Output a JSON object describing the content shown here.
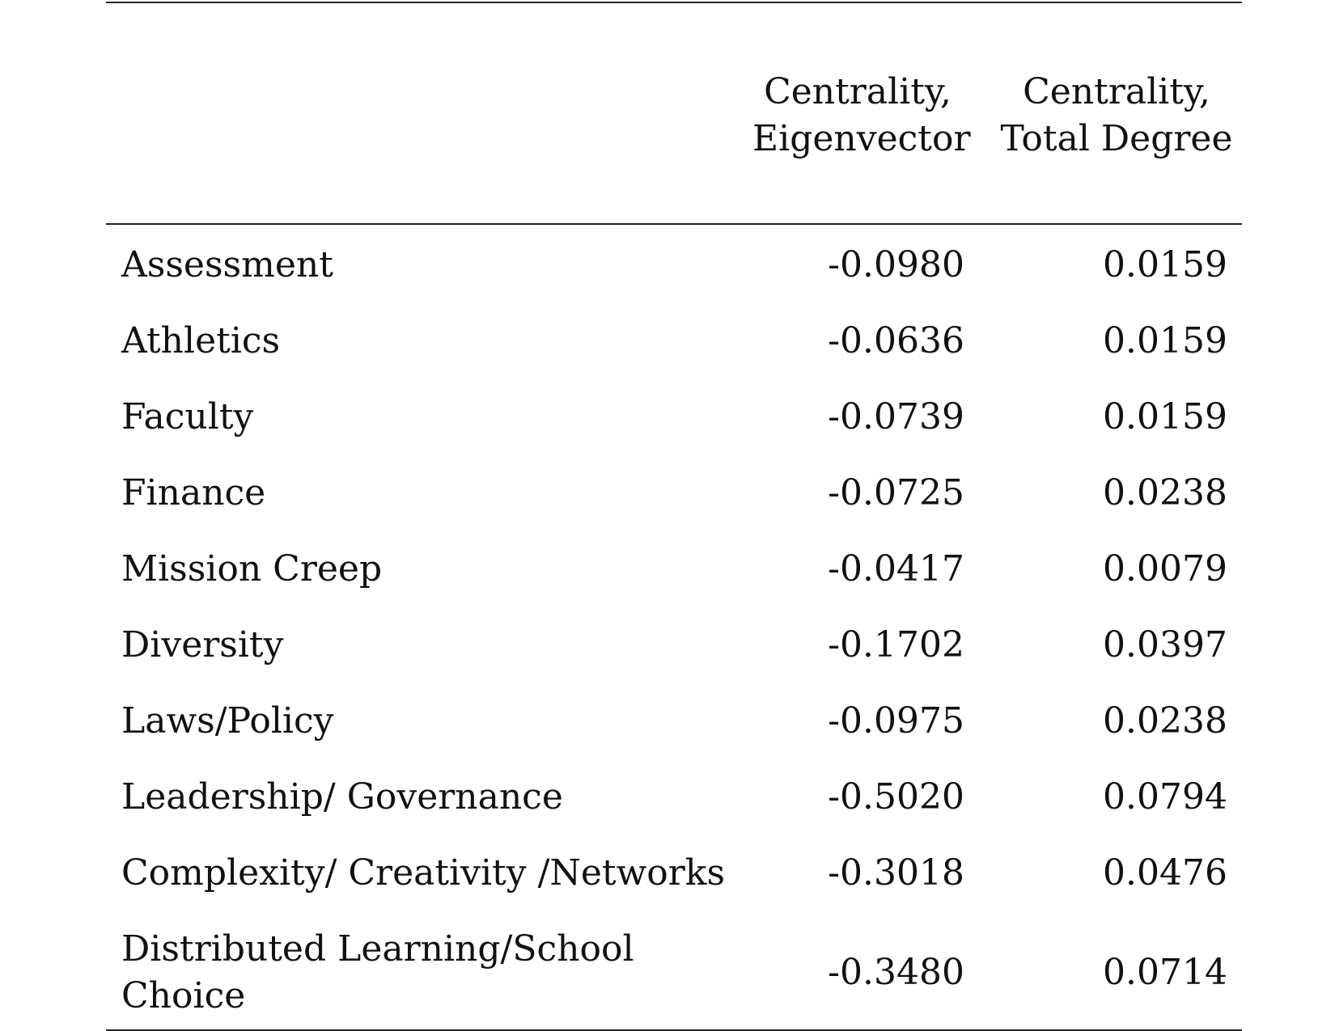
{
  "table": {
    "headers": {
      "eigenvector": [
        "Centrality,",
        "Eigenvector"
      ],
      "total_degree": [
        "Centrality,",
        "Total Degree"
      ]
    },
    "rows": [
      {
        "label": "Assessment",
        "eigenvector": "-0.0980",
        "total_degree": "0.0159"
      },
      {
        "label": "Athletics",
        "eigenvector": "-0.0636",
        "total_degree": "0.0159"
      },
      {
        "label": "Faculty",
        "eigenvector": "-0.0739",
        "total_degree": "0.0159"
      },
      {
        "label": "Finance",
        "eigenvector": "-0.0725",
        "total_degree": "0.0238"
      },
      {
        "label": "Mission Creep",
        "eigenvector": "-0.0417",
        "total_degree": "0.0079"
      },
      {
        "label": "Diversity",
        "eigenvector": "-0.1702",
        "total_degree": "0.0397"
      },
      {
        "label": "Laws/Policy",
        "eigenvector": "-0.0975",
        "total_degree": "0.0238"
      },
      {
        "label": "Leadership/ Governance",
        "eigenvector": "-0.5020",
        "total_degree": "0.0794"
      },
      {
        "label": "Complexity/ Creativity /Networks",
        "eigenvector": "-0.3018",
        "total_degree": "0.0476"
      },
      {
        "label_lines": [
          "Distributed Learning/School",
          "Choice"
        ],
        "eigenvector": "-0.3480",
        "total_degree": "0.0714"
      }
    ]
  }
}
